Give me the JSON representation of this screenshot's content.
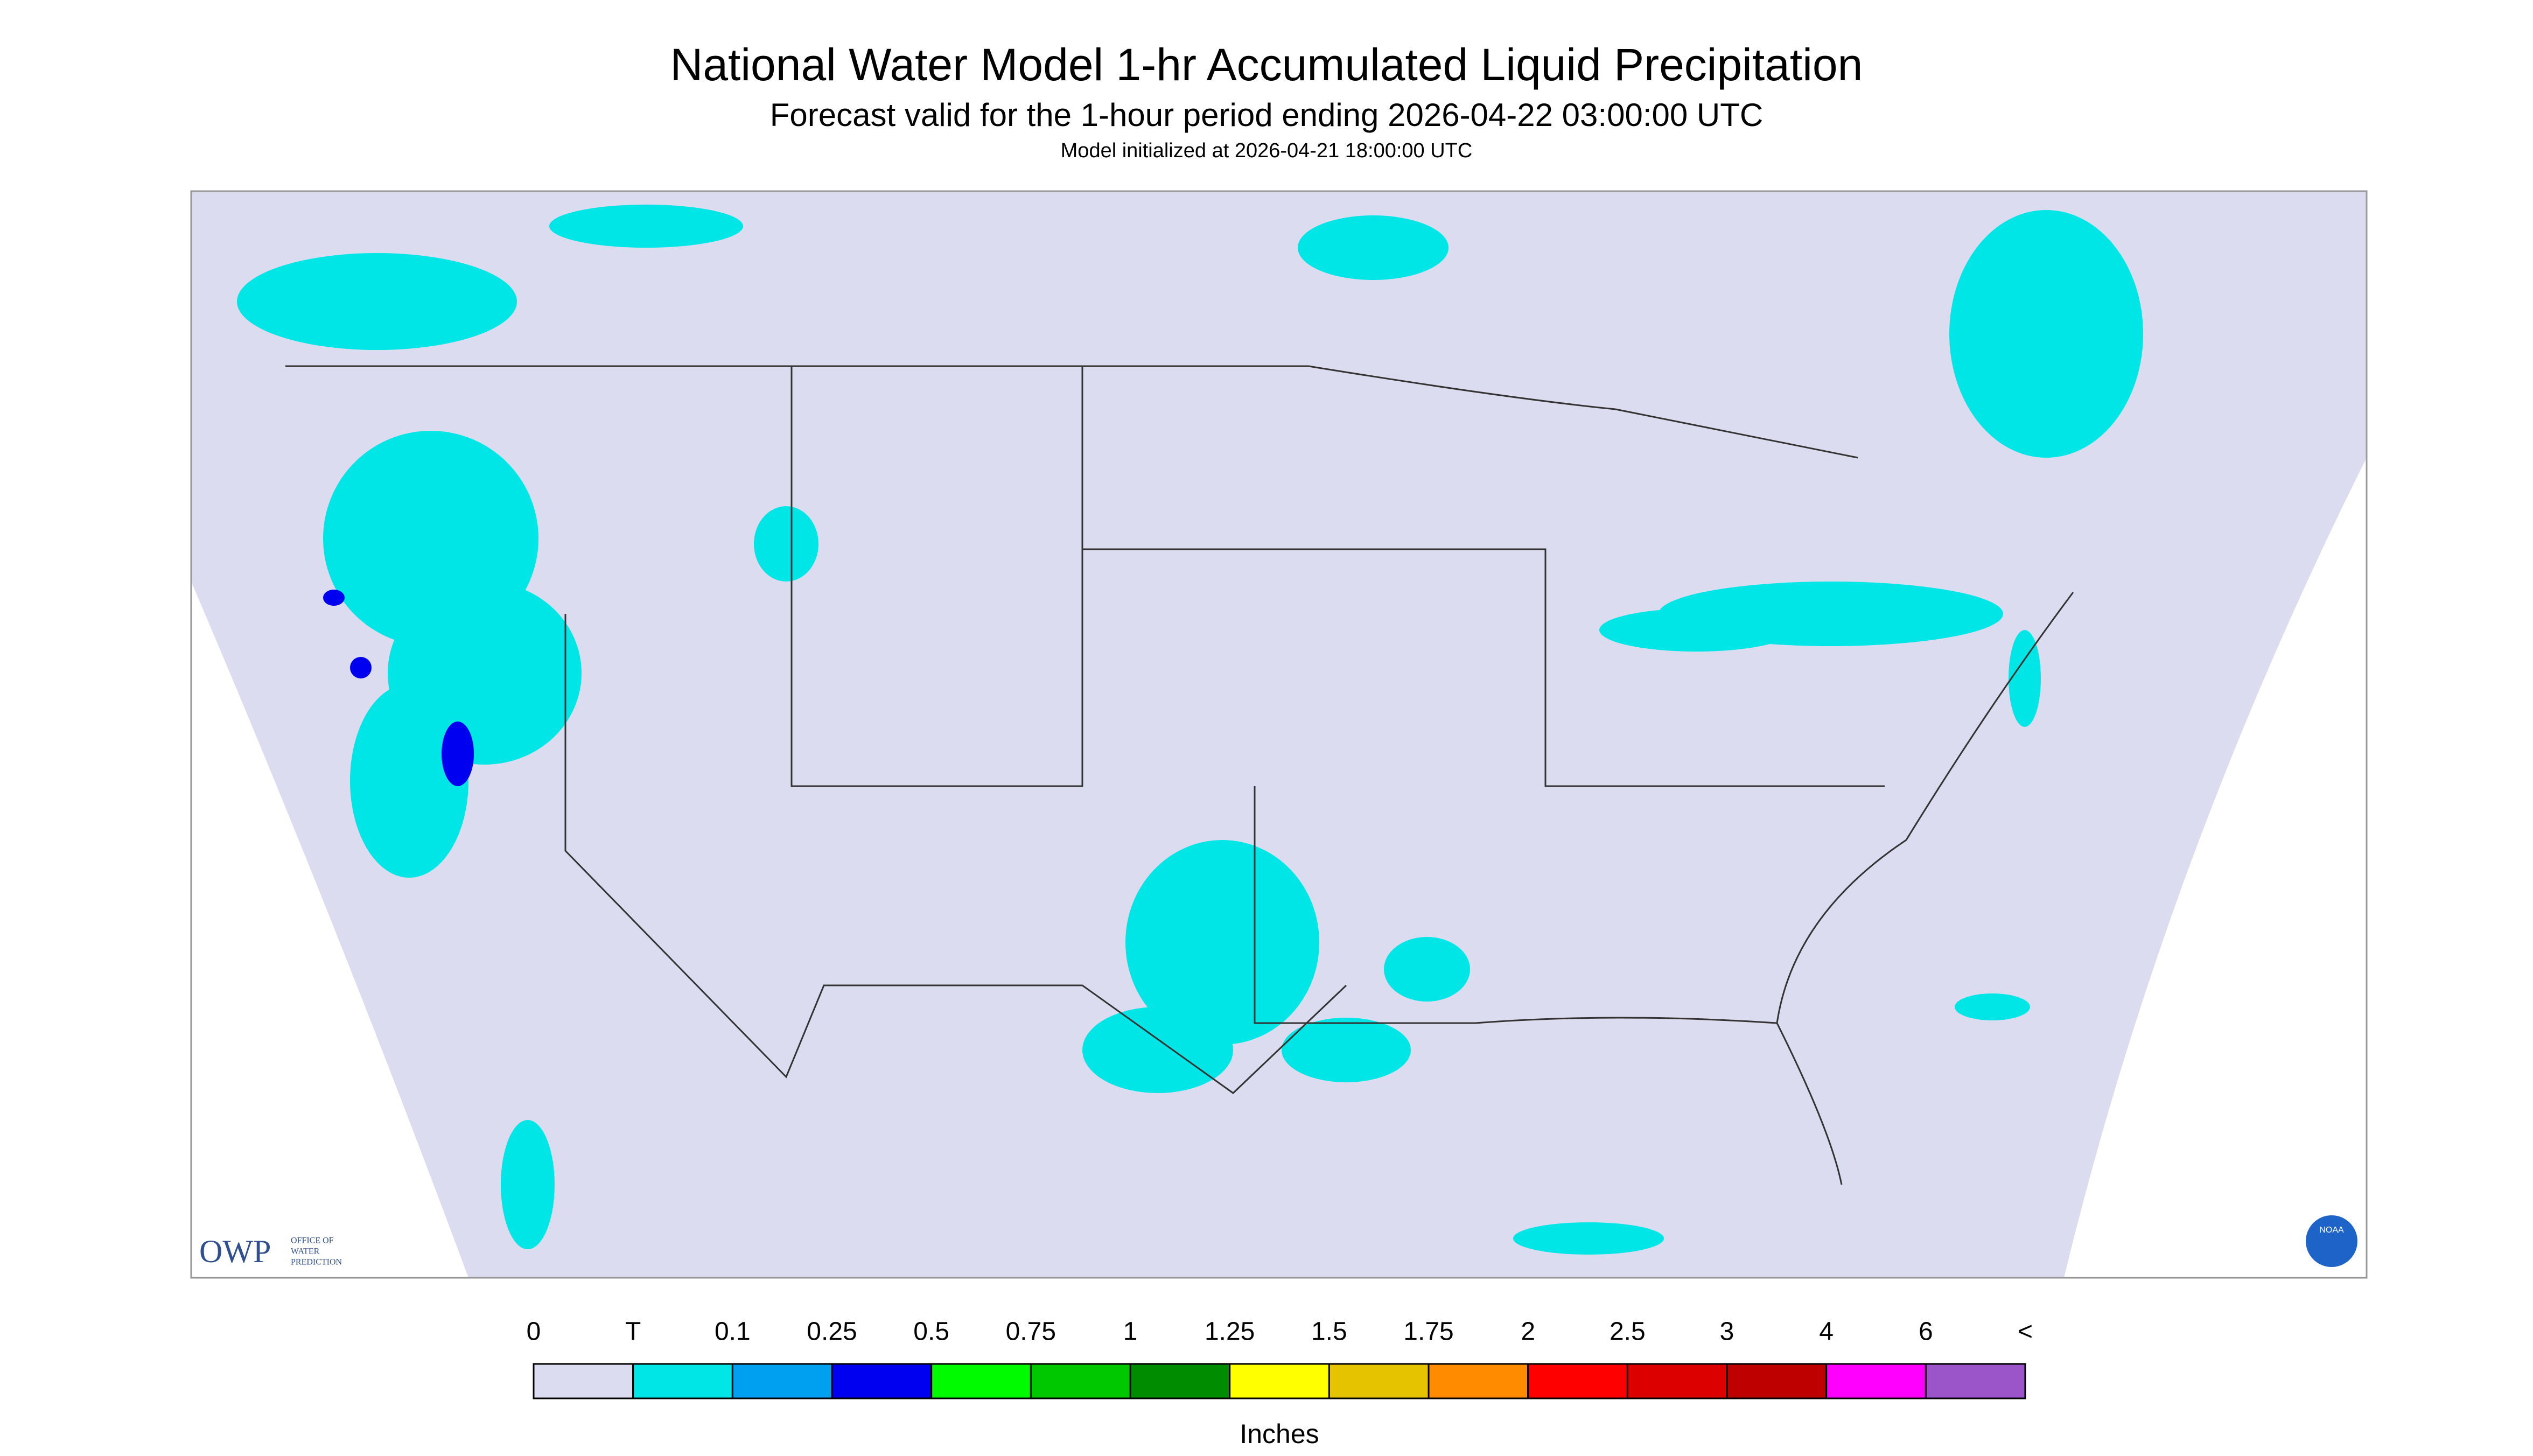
{
  "header": {
    "title": "National Water Model 1-hr Accumulated Liquid Precipitation",
    "subtitle": "Forecast valid for the 1-hour period ending 2026-04-22 03:00:00 UTC",
    "init": "Model initialized at 2026-04-21 18:00:00 UTC"
  },
  "map": {
    "logo": "OWP",
    "logo_subtext": [
      "OFFICE OF",
      "WATER",
      "PREDICTION"
    ],
    "noaa": "NOAA"
  },
  "legend": {
    "labels": [
      "0",
      "T",
      "0.1",
      "0.25",
      "0.5",
      "0.75",
      "1",
      "1.25",
      "1.5",
      "1.75",
      "2",
      "2.5",
      "3",
      "4",
      "6",
      "<"
    ],
    "colors": [
      "#dcdcf0",
      "#00e6e6",
      "#00a0f0",
      "#0000f0",
      "#00fa00",
      "#00c800",
      "#008c00",
      "#ffff00",
      "#e6c300",
      "#ff8c00",
      "#ff0000",
      "#dc0000",
      "#be0000",
      "#ff00ff",
      "#9b55c8"
    ],
    "unit": "Inches"
  }
}
